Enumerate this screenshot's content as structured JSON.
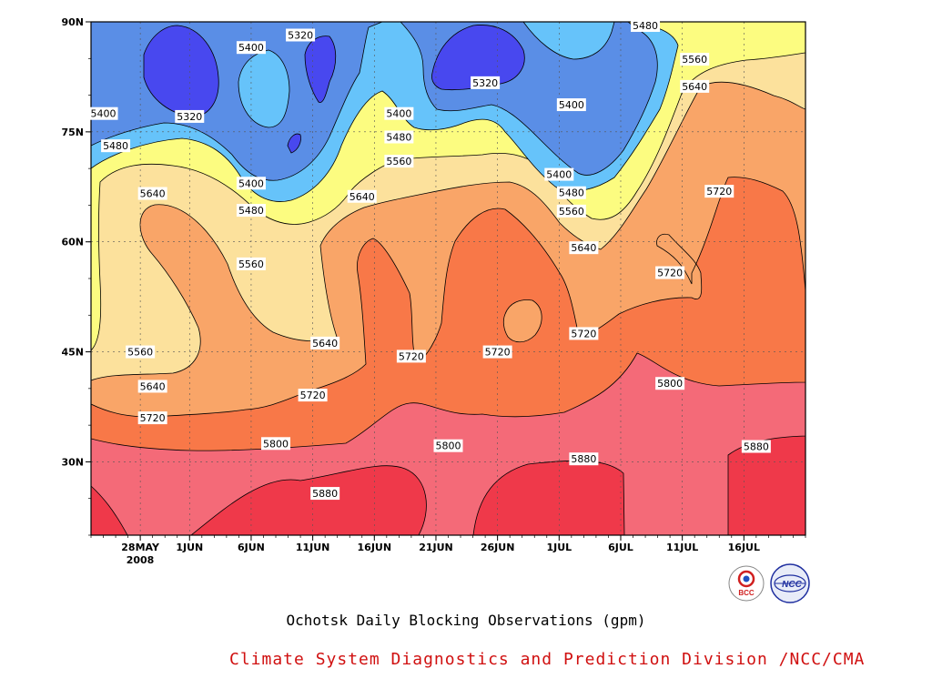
{
  "chart_data": {
    "type": "contour",
    "title": "Ochotsk Daily Blocking Observations (gpm)",
    "credit": "Climate System Diagnostics and Prediction Division /NCC/CMA",
    "x_date_ticks": [
      "28MAY",
      "1JUN",
      "6JUN",
      "11JUN",
      "16JUN",
      "21JUN",
      "26JUN",
      "1JUL",
      "6JUL",
      "11JUL",
      "16JUL"
    ],
    "x_year_label": "2008",
    "x_range": [
      "24MAY2008",
      "21JUL2008"
    ],
    "y_ticks": [
      "30N",
      "45N",
      "60N",
      "75N",
      "90N"
    ],
    "y_range": [
      20,
      90
    ],
    "grid": "dotted",
    "contour_levels": [
      5320,
      5400,
      5480,
      5560,
      5640,
      5720,
      5800,
      5880
    ],
    "band_colors": {
      "below_5320": "#4848ef",
      "5320_5400": "#5a8ee6",
      "5400_5480": "#66c3fa",
      "5480_5560": "#fcfc80",
      "5560_5640": "#fce19c",
      "5640_5720": "#f9a568",
      "5720_5800": "#f87848",
      "5800_5880": "#f46a78",
      "above_5880": "#ef394a"
    },
    "contour_labels": [
      {
        "value": 5320,
        "date": "1JUN",
        "lat": 77.1
      },
      {
        "value": 5320,
        "date": "10JUN",
        "lat": 88.2
      },
      {
        "value": 5320,
        "date": "25JUN",
        "lat": 81.7
      },
      {
        "value": 5400,
        "date": "25MAY",
        "lat": 77.5
      },
      {
        "value": 5400,
        "date": "6JUN",
        "lat": 86.5
      },
      {
        "value": 5400,
        "date": "6JUN",
        "lat": 68.0
      },
      {
        "value": 5400,
        "date": "18JUN",
        "lat": 77.5
      },
      {
        "value": 5400,
        "date": "2JUL",
        "lat": 78.7
      },
      {
        "value": 5400,
        "date": "1JUL",
        "lat": 69.2
      },
      {
        "value": 5480,
        "date": "26MAY",
        "lat": 73.1
      },
      {
        "value": 5480,
        "date": "6JUN",
        "lat": 64.3
      },
      {
        "value": 5480,
        "date": "18JUN",
        "lat": 74.3
      },
      {
        "value": 5480,
        "date": "2JUL",
        "lat": 66.7
      },
      {
        "value": 5480,
        "date": "8JUL",
        "lat": 89.5
      },
      {
        "value": 5560,
        "date": "6JUN",
        "lat": 57.0
      },
      {
        "value": 5560,
        "date": "18JUN",
        "lat": 71.0
      },
      {
        "value": 5560,
        "date": "2JUL",
        "lat": 64.2
      },
      {
        "value": 5560,
        "date": "12JUL",
        "lat": 84.9
      },
      {
        "value": 5560,
        "date": "28MAY",
        "lat": 45.0
      },
      {
        "value": 5640,
        "date": "29MAY",
        "lat": 66.6
      },
      {
        "value": 5640,
        "date": "15JUN",
        "lat": 66.2
      },
      {
        "value": 5640,
        "date": "12JUN",
        "lat": 46.2
      },
      {
        "value": 5640,
        "date": "3JUL",
        "lat": 59.2
      },
      {
        "value": 5640,
        "date": "12JUL",
        "lat": 81.2
      },
      {
        "value": 5640,
        "date": "29MAY",
        "lat": 40.3
      },
      {
        "value": 5720,
        "date": "29MAY",
        "lat": 36.0
      },
      {
        "value": 5720,
        "date": "11JUN",
        "lat": 39.1
      },
      {
        "value": 5720,
        "date": "19JUN",
        "lat": 44.4
      },
      {
        "value": 5720,
        "date": "26JUN",
        "lat": 45.0
      },
      {
        "value": 5720,
        "date": "3JUL",
        "lat": 47.5
      },
      {
        "value": 5720,
        "date": "10JUL",
        "lat": 55.8
      },
      {
        "value": 5720,
        "date": "14JUL",
        "lat": 66.9
      },
      {
        "value": 5800,
        "date": "8JUN",
        "lat": 32.5
      },
      {
        "value": 5800,
        "date": "22JUN",
        "lat": 32.2
      },
      {
        "value": 5800,
        "date": "10JUL",
        "lat": 40.7
      },
      {
        "value": 5880,
        "date": "12JUN",
        "lat": 25.7
      },
      {
        "value": 5880,
        "date": "3JUL",
        "lat": 30.4
      },
      {
        "value": 5880,
        "date": "17JUL",
        "lat": 32.1
      }
    ]
  },
  "captions": {
    "title": "Ochotsk Daily Blocking Observations (gpm)",
    "credit": "Climate System Diagnostics and Prediction Division /NCC/CMA"
  },
  "logos": [
    {
      "name": "bcc-logo",
      "text": "BCC",
      "color": "#d02020"
    },
    {
      "name": "ncc-logo",
      "text": "NCC",
      "color": "#2030a0"
    }
  ]
}
